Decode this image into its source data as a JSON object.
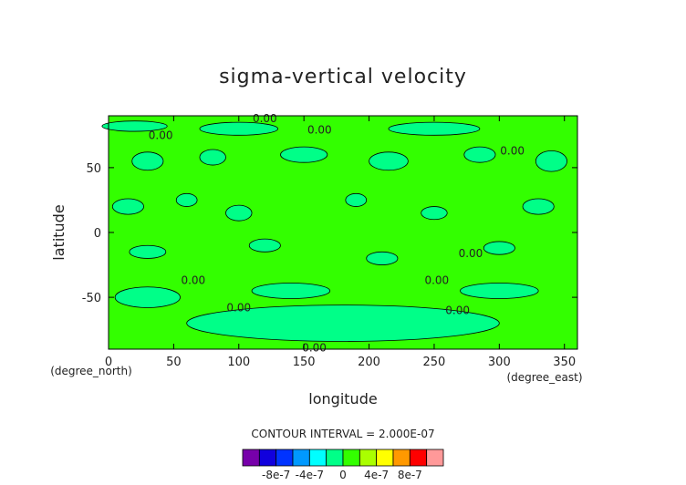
{
  "chart_data": {
    "type": "heatmap",
    "title": "sigma-vertical velocity",
    "xlabel": "longitude",
    "ylabel": "latitude",
    "x_unit": "(degree_east)",
    "y_unit": "(degree_north)",
    "xlim": [
      0,
      360
    ],
    "ylim": [
      -90,
      90
    ],
    "x_ticks": [
      "0",
      "50",
      "100",
      "150",
      "200",
      "250",
      "300",
      "350"
    ],
    "y_ticks": [
      "-50",
      "0",
      "50"
    ],
    "contour_interval_text": "CONTOUR INTERVAL = 2.000E-07",
    "contour_labels": [
      {
        "text": "0.00",
        "lon": 120,
        "lat": 88
      },
      {
        "text": "0.00",
        "lon": 162,
        "lat": 79
      },
      {
        "text": "0.00",
        "lon": 40,
        "lat": 75
      },
      {
        "text": "0.00",
        "lon": 310,
        "lat": 63
      },
      {
        "text": "0.00",
        "lon": 278,
        "lat": -16
      },
      {
        "text": "0.00",
        "lon": 252,
        "lat": -37
      },
      {
        "text": "0.00",
        "lon": 65,
        "lat": -37
      },
      {
        "text": "0.00",
        "lon": 100,
        "lat": -58
      },
      {
        "text": "0.00",
        "lon": 268,
        "lat": -60
      },
      {
        "text": "0.00",
        "lon": 158,
        "lat": -89
      }
    ],
    "colorbar": {
      "colors": [
        "#7700aa",
        "#1100dd",
        "#0033ff",
        "#0099ff",
        "#00ffff",
        "#00ff88",
        "#33ff00",
        "#aaff00",
        "#ffff00",
        "#ff9900",
        "#ff0000",
        "#ff9999"
      ],
      "tick_labels": [
        "-8e-7",
        "-4e-7",
        "0",
        "4e-7",
        "8e-7"
      ],
      "tick_values": [
        -8e-07,
        -4e-07,
        0,
        4e-07,
        8e-07
      ],
      "range": [
        -1.2e-06,
        1.2e-06
      ]
    },
    "field_colors": {
      "low": "#33ff00",
      "high": "#00ff88"
    },
    "regions_high": [
      {
        "lon": 20,
        "lat": 82,
        "rlon": 25,
        "rlat": 4
      },
      {
        "lon": 100,
        "lat": 80,
        "rlon": 30,
        "rlat": 5
      },
      {
        "lon": 250,
        "lat": 80,
        "rlon": 35,
        "rlat": 5
      },
      {
        "lon": 30,
        "lat": 55,
        "rlon": 12,
        "rlat": 7
      },
      {
        "lon": 80,
        "lat": 58,
        "rlon": 10,
        "rlat": 6
      },
      {
        "lon": 150,
        "lat": 60,
        "rlon": 18,
        "rlat": 6
      },
      {
        "lon": 215,
        "lat": 55,
        "rlon": 15,
        "rlat": 7
      },
      {
        "lon": 285,
        "lat": 60,
        "rlon": 12,
        "rlat": 6
      },
      {
        "lon": 340,
        "lat": 55,
        "rlon": 12,
        "rlat": 8
      },
      {
        "lon": 15,
        "lat": 20,
        "rlon": 12,
        "rlat": 6
      },
      {
        "lon": 60,
        "lat": 25,
        "rlon": 8,
        "rlat": 5
      },
      {
        "lon": 100,
        "lat": 15,
        "rlon": 10,
        "rlat": 6
      },
      {
        "lon": 190,
        "lat": 25,
        "rlon": 8,
        "rlat": 5
      },
      {
        "lon": 250,
        "lat": 15,
        "rlon": 10,
        "rlat": 5
      },
      {
        "lon": 330,
        "lat": 20,
        "rlon": 12,
        "rlat": 6
      },
      {
        "lon": 30,
        "lat": -15,
        "rlon": 14,
        "rlat": 5
      },
      {
        "lon": 120,
        "lat": -10,
        "rlon": 12,
        "rlat": 5
      },
      {
        "lon": 210,
        "lat": -20,
        "rlon": 12,
        "rlat": 5
      },
      {
        "lon": 300,
        "lat": -12,
        "rlon": 12,
        "rlat": 5
      },
      {
        "lon": 30,
        "lat": -50,
        "rlon": 25,
        "rlat": 8
      },
      {
        "lon": 140,
        "lat": -45,
        "rlon": 30,
        "rlat": 6
      },
      {
        "lon": 300,
        "lat": -45,
        "rlon": 30,
        "rlat": 6
      },
      {
        "lon": 180,
        "lat": -70,
        "rlon": 120,
        "rlat": 14
      }
    ]
  }
}
